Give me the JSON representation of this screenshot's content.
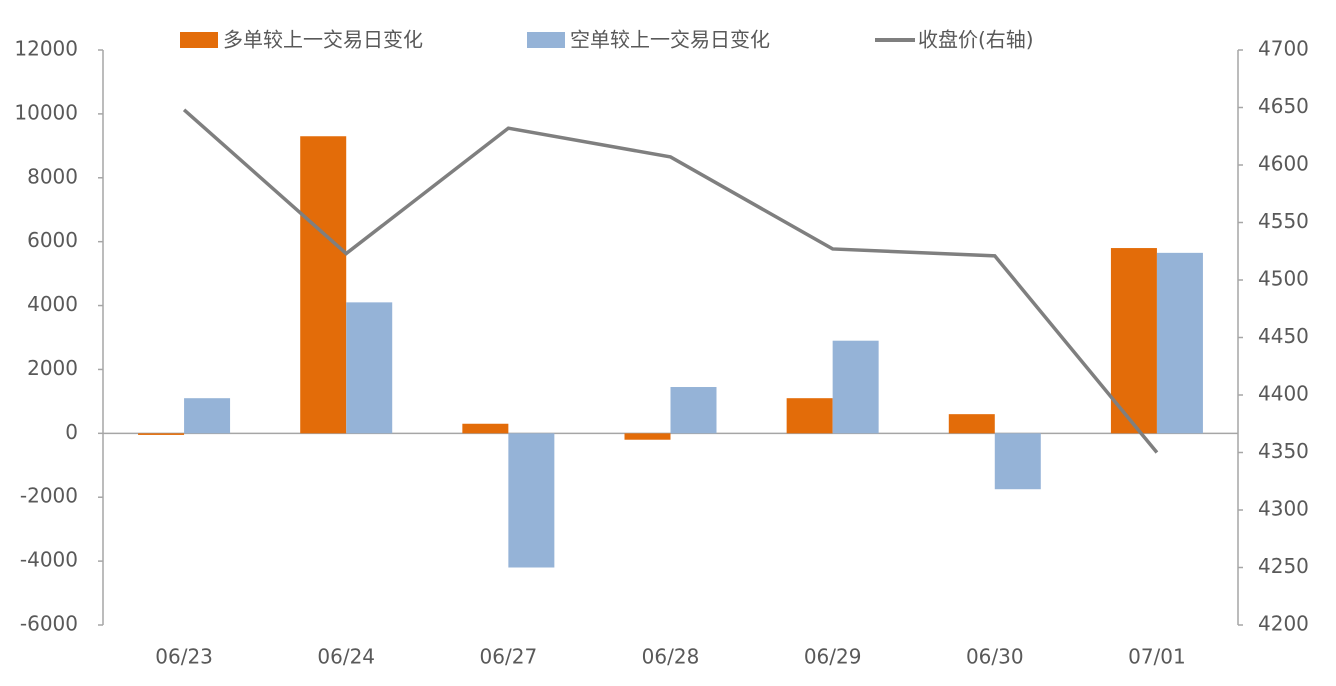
{
  "chart_data": {
    "type": "bar",
    "categories": [
      "06/23",
      "06/24",
      "06/27",
      "06/28",
      "06/29",
      "06/30",
      "07/01"
    ],
    "series": [
      {
        "name": "多单较上一交易日变化",
        "color": "#e36c09",
        "values": [
          -50,
          9300,
          300,
          -200,
          1100,
          600,
          5800
        ]
      },
      {
        "name": "空单较上一交易日变化",
        "color": "#95b3d7",
        "values": [
          1100,
          4100,
          -4200,
          1450,
          2900,
          -1750,
          5650
        ]
      },
      {
        "name": "收盘价(右轴)",
        "color": "#7f7f7f",
        "type": "line",
        "axis": "y2",
        "values": [
          4648,
          4523,
          4632,
          4607,
          4527,
          4521,
          4350
        ]
      }
    ],
    "ylim": [
      -6000,
      12000
    ],
    "yticks": [
      -6000,
      -4000,
      -2000,
      0,
      2000,
      4000,
      6000,
      8000,
      10000,
      12000
    ],
    "y2lim": [
      4200,
      4700
    ],
    "y2ticks": [
      4200,
      4250,
      4300,
      4350,
      4400,
      4450,
      4500,
      4550,
      4600,
      4650,
      4700
    ],
    "legend": "top"
  }
}
